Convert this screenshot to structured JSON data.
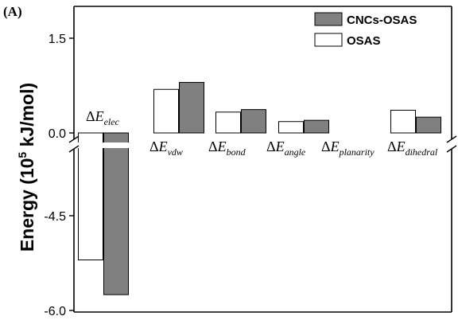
{
  "panel_label": "(A)",
  "chart_data": {
    "type": "bar",
    "title": "",
    "ylabel_main": "Energy (10",
    "ylabel_sup": "5",
    "ylabel_tail": " kJ/mol)",
    "y_axis_break": true,
    "upper_ylim": [
      0.0,
      2.0
    ],
    "lower_ylim": [
      -6.0,
      -3.5
    ],
    "y_ticks": [
      -6.0,
      -4.5,
      0.0,
      1.5
    ],
    "y_tick_labels": [
      "-6.0",
      "-4.5",
      "0.0",
      "1.5"
    ],
    "categories": [
      {
        "prefix": "ΔE",
        "sub": "elec"
      },
      {
        "prefix": "ΔE",
        "sub": "vdw"
      },
      {
        "prefix": "ΔE",
        "sub": "bond"
      },
      {
        "prefix": "ΔE",
        "sub": "angle"
      },
      {
        "prefix": "ΔE",
        "sub": "planarity"
      },
      {
        "prefix": "ΔE",
        "sub": "dihedral"
      }
    ],
    "series": [
      {
        "name": "OSAS",
        "color": "#ffffff",
        "values": [
          -5.2,
          0.69,
          0.33,
          0.18,
          0.0,
          0.36
        ]
      },
      {
        "name": "CNCs-OSAS",
        "color": "#808080",
        "values": [
          -5.75,
          0.8,
          0.37,
          0.2,
          0.0,
          0.25
        ]
      }
    ],
    "legend": {
      "placement": "top-right",
      "order": [
        "CNCs-OSAS",
        "OSAS"
      ]
    },
    "grid": false
  }
}
